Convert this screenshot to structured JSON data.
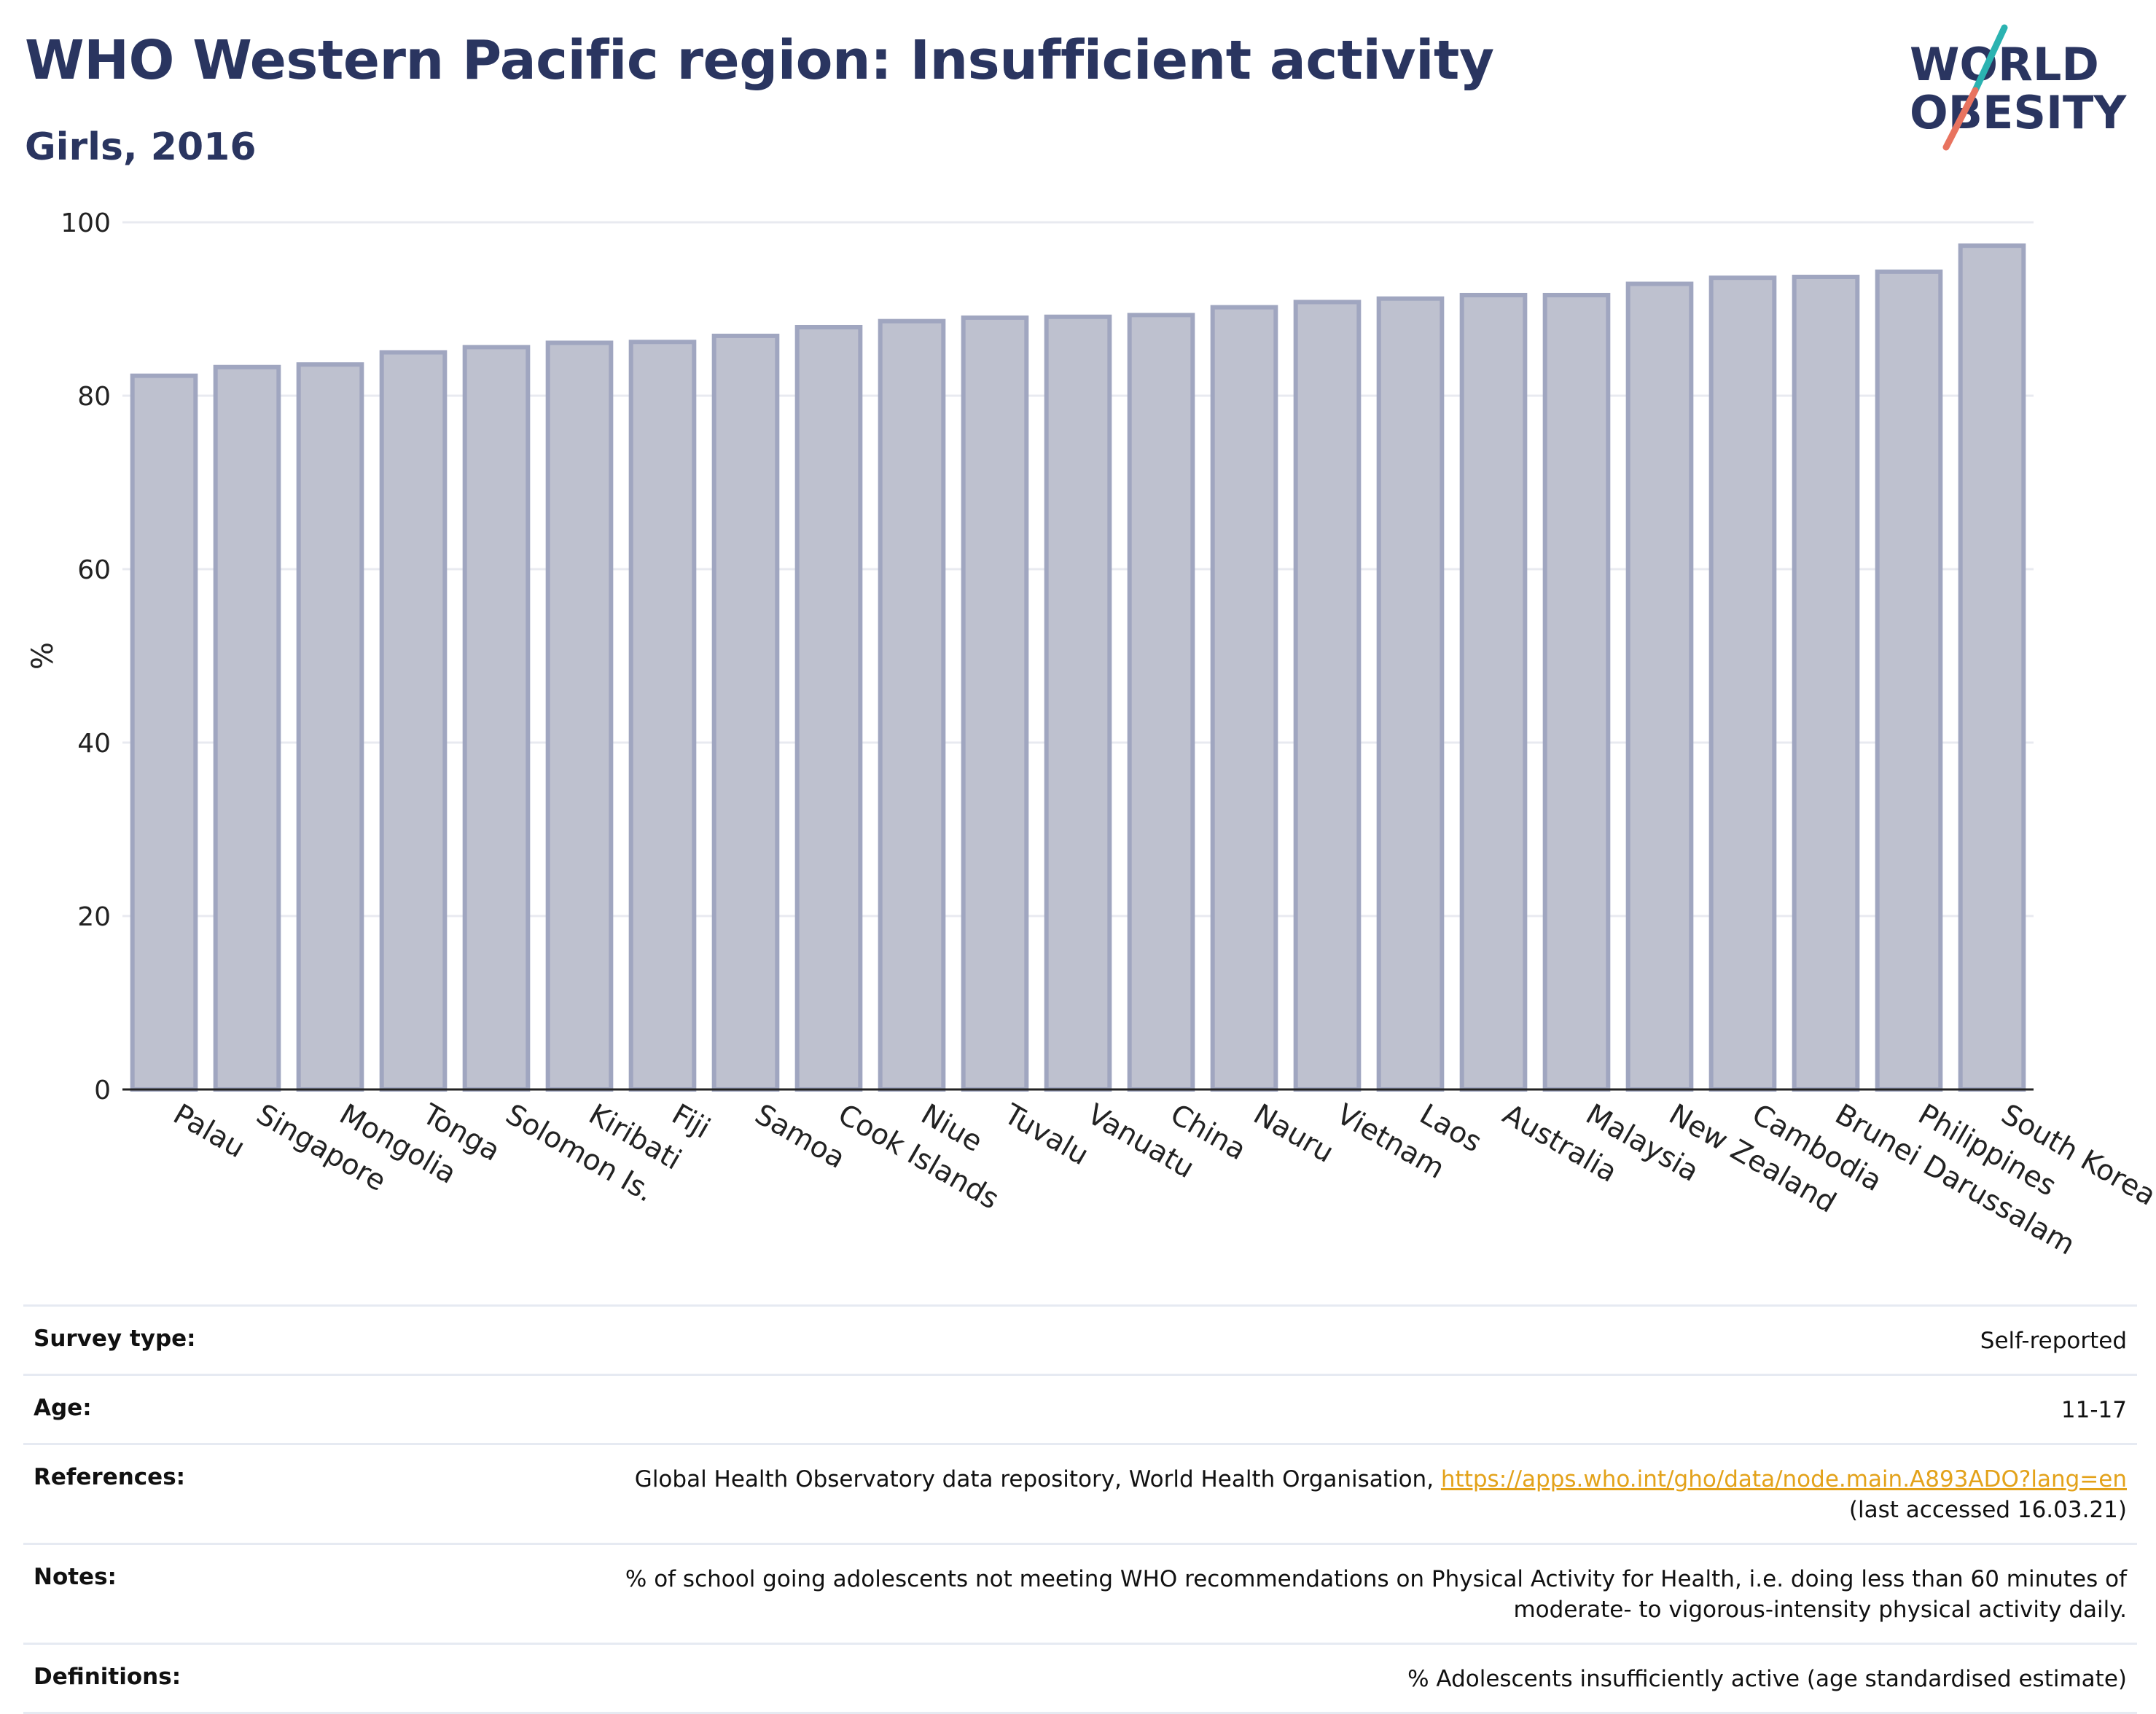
{
  "header": {
    "title": "WHO Western Pacific region: Insufficient activity",
    "subtitle": "Girls, 2016"
  },
  "logo": {
    "line1": "WORLD",
    "line2": "OBESITY",
    "colors": {
      "text": "#2a3560",
      "slash_top": "#2bb3b1",
      "slash_bottom": "#e8735f"
    }
  },
  "chart_data": {
    "type": "bar",
    "ylabel": "%",
    "xlabel": "",
    "ylim": [
      0,
      100
    ],
    "yticks": [
      0,
      20,
      40,
      60,
      80,
      100
    ],
    "grid": true,
    "categories": [
      "Palau",
      "Singapore",
      "Mongolia",
      "Tonga",
      "Solomon Is.",
      "Kiribati",
      "Fiji",
      "Samoa",
      "Cook Islands",
      "Niue",
      "Tuvalu",
      "Vanuatu",
      "China",
      "Nauru",
      "Vietnam",
      "Laos",
      "Australia",
      "Malaysia",
      "New Zealand",
      "Cambodia",
      "Brunei Darussalam",
      "Philippines",
      "South Korea"
    ],
    "values": [
      82.3,
      83.3,
      83.6,
      85.0,
      85.6,
      86.1,
      86.2,
      86.9,
      87.9,
      88.6,
      89.0,
      89.1,
      89.3,
      90.2,
      90.8,
      91.2,
      91.6,
      91.6,
      92.9,
      93.6,
      93.7,
      94.3,
      97.3
    ],
    "colors": {
      "bar_fill": "#bec1cf",
      "bar_stroke": "#a0a6c0",
      "axis": "#222222",
      "grid": "#e8eaf0"
    }
  },
  "info": {
    "survey_type": {
      "label": "Survey type:",
      "value": "Self-reported"
    },
    "age": {
      "label": "Age:",
      "value": "11-17"
    },
    "references": {
      "label": "References:",
      "text": "Global Health Observatory data repository, World Health Organisation, ",
      "link": "https://apps.who.int/gho/data/node.main.A893ADO?lang=en",
      "accessed": "(last accessed 16.03.21)"
    },
    "notes": {
      "label": "Notes:",
      "line1": "% of school going adolescents not meeting WHO recommendations on Physical Activity for Health, i.e. doing less than 60 minutes of",
      "line2": "moderate- to vigorous-intensity physical activity daily."
    },
    "definitions": {
      "label": "Definitions:",
      "value": "% Adolescents insufficiently active (age standardised estimate)"
    }
  }
}
